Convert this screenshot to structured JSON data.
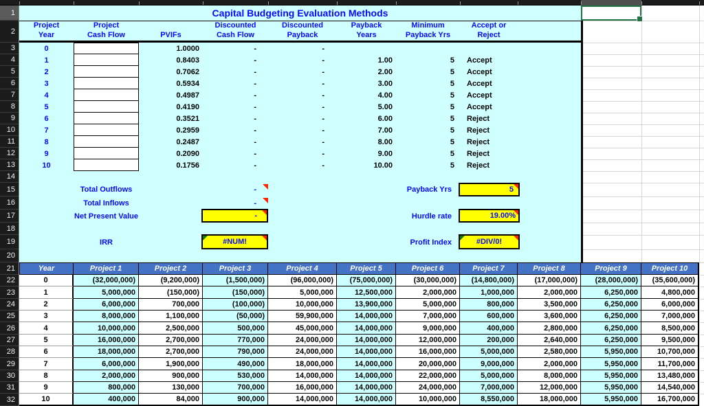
{
  "title": "Capital Budgeting Evaluation Methods",
  "row_numbers": [
    1,
    2,
    3,
    4,
    5,
    6,
    7,
    8,
    9,
    10,
    11,
    12,
    13,
    14,
    15,
    16,
    17,
    18,
    19,
    20,
    21,
    22,
    23,
    24,
    25,
    26,
    27,
    28,
    29,
    30,
    31,
    32
  ],
  "top_table": {
    "column_headers": [
      {
        "line1": "Project",
        "line2": "Year"
      },
      {
        "line1": "Project",
        "line2": "Cash Flow"
      },
      {
        "line1": "",
        "line2": "PVIFs"
      },
      {
        "line1": "Discounted",
        "line2": "Cash Flow"
      },
      {
        "line1": "Discounted",
        "line2": "Payback"
      },
      {
        "line1": "Payback",
        "line2": "Years"
      },
      {
        "line1": "Minimum",
        "line2": "Payback Yrs"
      },
      {
        "line1": "Accept or",
        "line2": "Reject"
      }
    ],
    "rows": [
      {
        "year": "0",
        "cash_flow": "",
        "pvif": "1.0000",
        "discounted_cash_flow": "-",
        "discounted_payback": "-",
        "payback_years": "",
        "min_payback_yrs": "",
        "decision": ""
      },
      {
        "year": "1",
        "cash_flow": "",
        "pvif": "0.8403",
        "discounted_cash_flow": "-",
        "discounted_payback": "-",
        "payback_years": "1.00",
        "min_payback_yrs": "5",
        "decision": "Accept"
      },
      {
        "year": "2",
        "cash_flow": "",
        "pvif": "0.7062",
        "discounted_cash_flow": "-",
        "discounted_payback": "-",
        "payback_years": "2.00",
        "min_payback_yrs": "5",
        "decision": "Accept"
      },
      {
        "year": "3",
        "cash_flow": "",
        "pvif": "0.5934",
        "discounted_cash_flow": "-",
        "discounted_payback": "-",
        "payback_years": "3.00",
        "min_payback_yrs": "5",
        "decision": "Accept"
      },
      {
        "year": "4",
        "cash_flow": "",
        "pvif": "0.4987",
        "discounted_cash_flow": "-",
        "discounted_payback": "-",
        "payback_years": "4.00",
        "min_payback_yrs": "5",
        "decision": "Accept"
      },
      {
        "year": "5",
        "cash_flow": "",
        "pvif": "0.4190",
        "discounted_cash_flow": "-",
        "discounted_payback": "-",
        "payback_years": "5.00",
        "min_payback_yrs": "5",
        "decision": "Accept"
      },
      {
        "year": "6",
        "cash_flow": "",
        "pvif": "0.3521",
        "discounted_cash_flow": "-",
        "discounted_payback": "-",
        "payback_years": "6.00",
        "min_payback_yrs": "5",
        "decision": "Reject"
      },
      {
        "year": "7",
        "cash_flow": "",
        "pvif": "0.2959",
        "discounted_cash_flow": "-",
        "discounted_payback": "-",
        "payback_years": "7.00",
        "min_payback_yrs": "5",
        "decision": "Reject"
      },
      {
        "year": "8",
        "cash_flow": "",
        "pvif": "0.2487",
        "discounted_cash_flow": "-",
        "discounted_payback": "-",
        "payback_years": "8.00",
        "min_payback_yrs": "5",
        "decision": "Reject"
      },
      {
        "year": "9",
        "cash_flow": "",
        "pvif": "0.2090",
        "discounted_cash_flow": "-",
        "discounted_payback": "-",
        "payback_years": "9.00",
        "min_payback_yrs": "5",
        "decision": "Reject"
      },
      {
        "year": "10",
        "cash_flow": "",
        "pvif": "0.1756",
        "discounted_cash_flow": "-",
        "discounted_payback": "-",
        "payback_years": "10.00",
        "min_payback_yrs": "5",
        "decision": "Reject"
      }
    ]
  },
  "summary": {
    "total_outflows_label": "Total Outflows",
    "total_outflows_value": "-",
    "total_inflows_label": "Total  Inflows",
    "total_inflows_value": "-",
    "npv_label": "Net Present Value",
    "npv_value": "-",
    "irr_label": "IRR",
    "irr_value": "#NUM!",
    "payback_label": "Payback Yrs",
    "payback_value": "5",
    "hurdle_label": "Hurdle rate",
    "hurdle_value": "19.00%",
    "profit_index_label": "Profit Index",
    "profit_index_value": "#DIV/0!"
  },
  "projects_table": {
    "column_headers": [
      "Year",
      "Project 1",
      "Project 2",
      "Project 3",
      "Project 4",
      "Project 5",
      "Project 6",
      "Project 7",
      "Project 8",
      "Project 9",
      "Project 10"
    ],
    "rows": [
      {
        "year": "0",
        "values": [
          "(32,000,000)",
          "(9,200,000)",
          "(1,500,000)",
          "(96,000,000)",
          "(75,000,000)",
          "(30,000,000)",
          "(14,800,000)",
          "(17,000,000)",
          "(28,000,000)",
          "(35,600,000)"
        ]
      },
      {
        "year": "1",
        "values": [
          "5,000,000",
          "(150,000)",
          "(150,000)",
          "5,000,000",
          "12,500,000",
          "2,000,000",
          "1,000,000",
          "2,000,000",
          "6,250,000",
          "4,800,000"
        ]
      },
      {
        "year": "2",
        "values": [
          "6,000,000",
          "700,000",
          "(100,000)",
          "10,000,000",
          "13,900,000",
          "5,000,000",
          "800,000",
          "3,500,000",
          "6,250,000",
          "6,000,000"
        ]
      },
      {
        "year": "3",
        "values": [
          "8,000,000",
          "1,100,000",
          "(50,000)",
          "59,900,000",
          "14,000,000",
          "7,000,000",
          "600,000",
          "3,600,000",
          "6,250,000",
          "7,000,000"
        ]
      },
      {
        "year": "4",
        "values": [
          "10,000,000",
          "2,500,000",
          "500,000",
          "45,000,000",
          "14,000,000",
          "9,000,000",
          "400,000",
          "2,800,000",
          "6,250,000",
          "8,500,000"
        ]
      },
      {
        "year": "5",
        "values": [
          "16,000,000",
          "2,700,000",
          "770,000",
          "24,000,000",
          "14,000,000",
          "12,000,000",
          "200,000",
          "2,640,000",
          "6,250,000",
          "9,500,000"
        ]
      },
      {
        "year": "6",
        "values": [
          "18,000,000",
          "2,700,000",
          "790,000",
          "24,000,000",
          "14,000,000",
          "16,000,000",
          "5,000,000",
          "2,580,000",
          "5,950,000",
          "10,700,000"
        ]
      },
      {
        "year": "7",
        "values": [
          "6,000,000",
          "1,900,000",
          "490,000",
          "18,000,000",
          "14,000,000",
          "20,000,000",
          "9,000,000",
          "2,000,000",
          "5,950,000",
          "11,700,000"
        ]
      },
      {
        "year": "8",
        "values": [
          "2,000,000",
          "900,000",
          "530,000",
          "14,000,000",
          "14,000,000",
          "22,000,000",
          "5,000,000",
          "8,000,000",
          "5,950,000",
          "13,480,000"
        ]
      },
      {
        "year": "9",
        "values": [
          "800,000",
          "130,000",
          "700,000",
          "16,000,000",
          "14,000,000",
          "24,000,000",
          "7,000,000",
          "12,000,000",
          "5,950,000",
          "14,540,000"
        ]
      },
      {
        "year": "10",
        "values": [
          "400,000",
          "84,000",
          "900,000",
          "14,000,000",
          "14,000,000",
          "10,000,000",
          "8,550,000",
          "18,000,000",
          "5,950,000",
          "16,700,000"
        ]
      }
    ]
  },
  "colors": {
    "header_accent_blue": "#4472C4",
    "highlight_yellow": "#FFFF00",
    "sheet_cyan": "#CCFFFF",
    "label_blue": "#0808FF",
    "selection_green": "#217346",
    "comment_marker_red": "#FF2600",
    "error_indicator_green": "#0B7B0B"
  }
}
